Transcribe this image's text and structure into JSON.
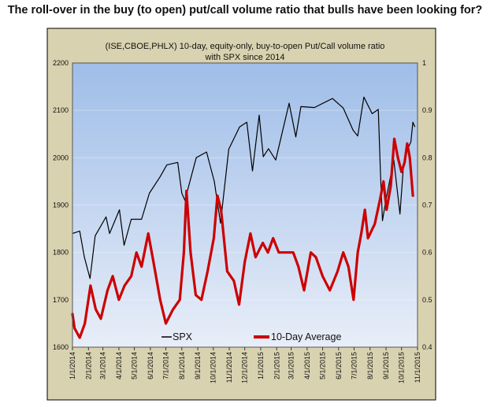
{
  "headline": "The roll-over in the buy (to open) put/call volume ratio that bulls have been looking for?",
  "colors": {
    "panel_bg": "#d9d2b0",
    "plot_top": "#9fbde8",
    "plot_bottom": "#e8eef8",
    "spx_line": "#000000",
    "ratio_line": "#cc0000"
  },
  "chart_data": {
    "type": "line",
    "title_line1": "(ISE,CBOE,PHLX) 10-day, equity-only, buy-to-open Put/Call volume ratio",
    "title_line2": "with SPX since 2014",
    "left_axis": {
      "min": 1600,
      "max": 2200,
      "ticks": [
        "1600",
        "1700",
        "1800",
        "1900",
        "2000",
        "2100",
        "2200"
      ]
    },
    "right_axis": {
      "min": 0.4,
      "max": 1,
      "ticks": [
        "0.4",
        "0.5",
        "0.6",
        "0.7",
        "0.8",
        "0.9",
        "1"
      ]
    },
    "x_ticks": [
      "1/1/2014",
      "2/1/2014",
      "3/1/2014",
      "4/1/2014",
      "5/1/2014",
      "6/1/2014",
      "7/1/2014",
      "8/1/2014",
      "9/1/2014",
      "10/1/2014",
      "11/1/2014",
      "12/1/2014",
      "1/1/2015",
      "2/1/2015",
      "3/1/2015",
      "4/1/2015",
      "5/1/2015",
      "6/1/2015",
      "7/1/2015",
      "8/1/2015",
      "9/1/2015",
      "10/1/2015",
      "11/1/2015"
    ],
    "grid": true,
    "legend_position": "bottom",
    "series": [
      {
        "name": "SPX",
        "axis": "left",
        "points": [
          [
            "2014-01-01",
            1840
          ],
          [
            "2014-01-15",
            1845
          ],
          [
            "2014-01-24",
            1790
          ],
          [
            "2014-02-04",
            1745
          ],
          [
            "2014-02-14",
            1835
          ],
          [
            "2014-03-07",
            1875
          ],
          [
            "2014-03-14",
            1840
          ],
          [
            "2014-04-02",
            1890
          ],
          [
            "2014-04-11",
            1815
          ],
          [
            "2014-04-25",
            1870
          ],
          [
            "2014-05-15",
            1870
          ],
          [
            "2014-05-30",
            1925
          ],
          [
            "2014-06-20",
            1960
          ],
          [
            "2014-07-03",
            1985
          ],
          [
            "2014-07-24",
            1990
          ],
          [
            "2014-08-01",
            1925
          ],
          [
            "2014-08-07",
            1910
          ],
          [
            "2014-08-29",
            2000
          ],
          [
            "2014-09-18",
            2012
          ],
          [
            "2014-10-03",
            1950
          ],
          [
            "2014-10-15",
            1862
          ],
          [
            "2014-10-31",
            2018
          ],
          [
            "2014-11-21",
            2065
          ],
          [
            "2014-12-05",
            2075
          ],
          [
            "2014-12-16",
            1972
          ],
          [
            "2014-12-29",
            2090
          ],
          [
            "2015-01-06",
            2002
          ],
          [
            "2015-01-16",
            2019
          ],
          [
            "2015-01-30",
            1995
          ],
          [
            "2015-02-25",
            2115
          ],
          [
            "2015-03-10",
            2044
          ],
          [
            "2015-03-20",
            2108
          ],
          [
            "2015-04-15",
            2106
          ],
          [
            "2015-05-20",
            2125
          ],
          [
            "2015-06-10",
            2105
          ],
          [
            "2015-06-29",
            2058
          ],
          [
            "2015-07-08",
            2046
          ],
          [
            "2015-07-20",
            2128
          ],
          [
            "2015-08-05",
            2093
          ],
          [
            "2015-08-17",
            2102
          ],
          [
            "2015-08-21",
            1970
          ],
          [
            "2015-08-25",
            1867
          ],
          [
            "2015-09-01",
            1913
          ],
          [
            "2015-09-16",
            1995
          ],
          [
            "2015-09-28",
            1881
          ],
          [
            "2015-10-05",
            1987
          ],
          [
            "2015-10-12",
            2017
          ],
          [
            "2015-10-19",
            2033
          ],
          [
            "2015-10-23",
            2075
          ],
          [
            "2015-10-27",
            2065
          ]
        ]
      },
      {
        "name": "10-Day Average",
        "axis": "right",
        "points": [
          [
            "2014-01-01",
            0.47
          ],
          [
            "2014-01-05",
            0.44
          ],
          [
            "2014-01-15",
            0.42
          ],
          [
            "2014-01-25",
            0.45
          ],
          [
            "2014-02-05",
            0.53
          ],
          [
            "2014-02-15",
            0.48
          ],
          [
            "2014-02-25",
            0.46
          ],
          [
            "2014-03-10",
            0.52
          ],
          [
            "2014-03-20",
            0.55
          ],
          [
            "2014-04-01",
            0.5
          ],
          [
            "2014-04-12",
            0.53
          ],
          [
            "2014-04-25",
            0.55
          ],
          [
            "2014-05-05",
            0.6
          ],
          [
            "2014-05-15",
            0.57
          ],
          [
            "2014-05-28",
            0.64
          ],
          [
            "2014-06-07",
            0.58
          ],
          [
            "2014-06-20",
            0.5
          ],
          [
            "2014-07-01",
            0.45
          ],
          [
            "2014-07-15",
            0.48
          ],
          [
            "2014-07-28",
            0.5
          ],
          [
            "2014-08-05",
            0.6
          ],
          [
            "2014-08-10",
            0.73
          ],
          [
            "2014-08-18",
            0.6
          ],
          [
            "2014-08-28",
            0.51
          ],
          [
            "2014-09-08",
            0.5
          ],
          [
            "2014-09-20",
            0.56
          ],
          [
            "2014-10-02",
            0.63
          ],
          [
            "2014-10-09",
            0.72
          ],
          [
            "2014-10-16",
            0.69
          ],
          [
            "2014-10-28",
            0.56
          ],
          [
            "2014-11-10",
            0.54
          ],
          [
            "2014-11-20",
            0.49
          ],
          [
            "2014-12-01",
            0.58
          ],
          [
            "2014-12-12",
            0.64
          ],
          [
            "2014-12-22",
            0.59
          ],
          [
            "2015-01-05",
            0.62
          ],
          [
            "2015-01-15",
            0.6
          ],
          [
            "2015-01-25",
            0.63
          ],
          [
            "2015-02-05",
            0.6
          ],
          [
            "2015-02-18",
            0.6
          ],
          [
            "2015-03-05",
            0.6
          ],
          [
            "2015-03-15",
            0.57
          ],
          [
            "2015-03-26",
            0.52
          ],
          [
            "2015-04-08",
            0.6
          ],
          [
            "2015-04-18",
            0.59
          ],
          [
            "2015-05-01",
            0.55
          ],
          [
            "2015-05-15",
            0.52
          ],
          [
            "2015-05-30",
            0.56
          ],
          [
            "2015-06-10",
            0.6
          ],
          [
            "2015-06-20",
            0.57
          ],
          [
            "2015-06-30",
            0.5
          ],
          [
            "2015-07-08",
            0.6
          ],
          [
            "2015-07-15",
            0.64
          ],
          [
            "2015-07-22",
            0.69
          ],
          [
            "2015-07-28",
            0.63
          ],
          [
            "2015-08-10",
            0.66
          ],
          [
            "2015-08-20",
            0.71
          ],
          [
            "2015-08-27",
            0.75
          ],
          [
            "2015-09-02",
            0.69
          ],
          [
            "2015-09-10",
            0.74
          ],
          [
            "2015-09-17",
            0.84
          ],
          [
            "2015-09-24",
            0.8
          ],
          [
            "2015-10-01",
            0.77
          ],
          [
            "2015-10-07",
            0.79
          ],
          [
            "2015-10-12",
            0.83
          ],
          [
            "2015-10-17",
            0.8
          ],
          [
            "2015-10-23",
            0.72
          ]
        ]
      }
    ]
  }
}
